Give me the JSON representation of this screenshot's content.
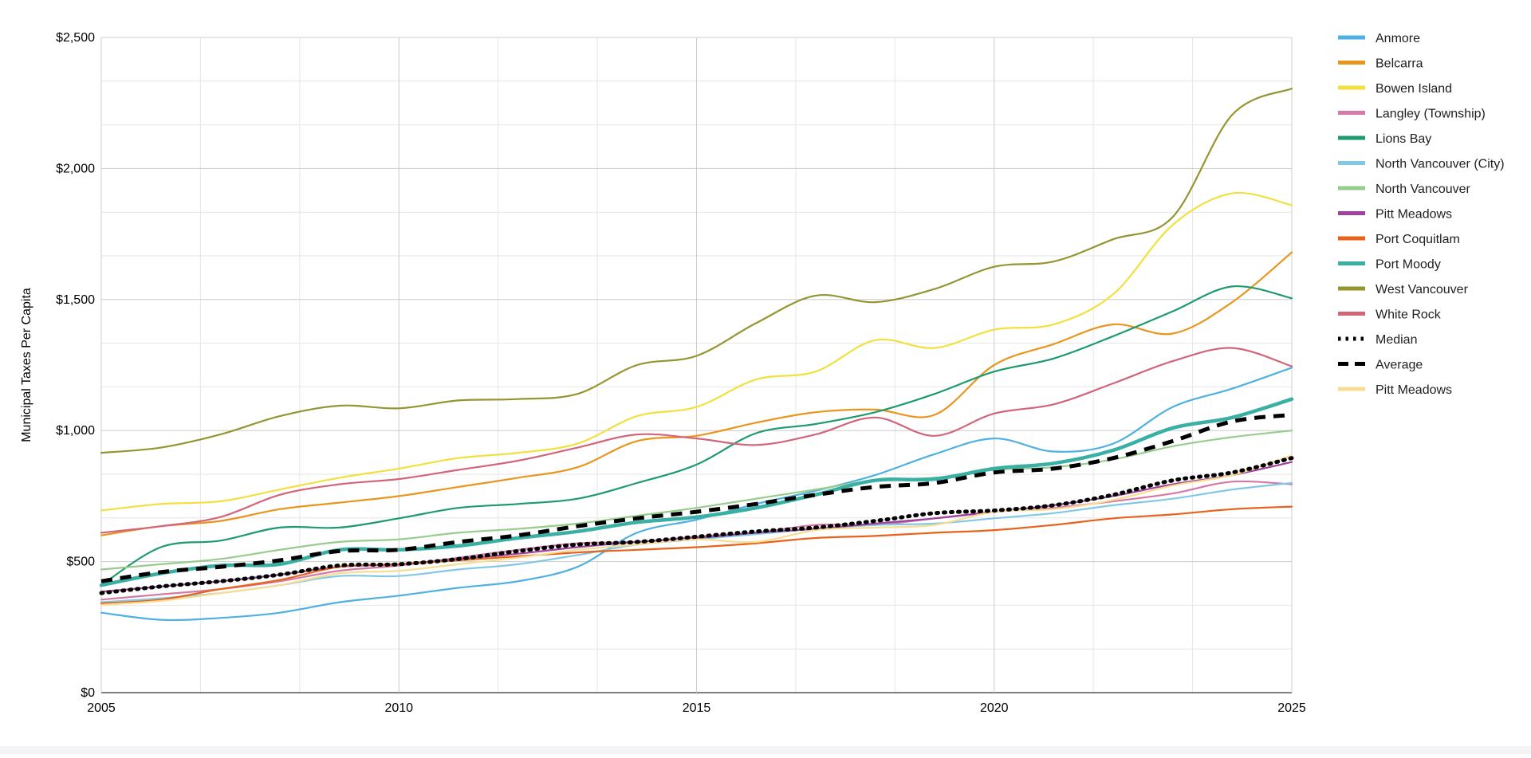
{
  "chart_data": {
    "type": "line",
    "title": "",
    "xlabel": "",
    "ylabel": "Municipal Taxes Per Capita",
    "xlim": [
      2005,
      2025
    ],
    "ylim": [
      0,
      2500
    ],
    "x_ticks": [
      {
        "value": 2005,
        "label": "2005"
      },
      {
        "value": 2010,
        "label": "2010"
      },
      {
        "value": 2015,
        "label": "2015"
      },
      {
        "value": 2020,
        "label": "2020"
      },
      {
        "value": 2025,
        "label": "2025"
      }
    ],
    "y_ticks": [
      {
        "value": 0,
        "label": "$0"
      },
      {
        "value": 500,
        "label": "$500"
      },
      {
        "value": 1000,
        "label": "$1,000"
      },
      {
        "value": 1500,
        "label": "$1,500"
      },
      {
        "value": 2000,
        "label": "$2,000"
      },
      {
        "value": 2500,
        "label": "$2,500"
      }
    ],
    "grid": true,
    "legend_position": "right",
    "x": [
      2005,
      2006,
      2007,
      2008,
      2009,
      2010,
      2011,
      2012,
      2013,
      2014,
      2015,
      2016,
      2017,
      2018,
      2019,
      2020,
      2021,
      2022,
      2023,
      2024,
      2025
    ],
    "series": [
      {
        "name": "Anmore",
        "color": "#4fb0e2",
        "style": "solid",
        "weight": "normal",
        "values": [
          305,
          278,
          285,
          305,
          345,
          370,
          400,
          425,
          480,
          610,
          660,
          720,
          770,
          830,
          910,
          970,
          920,
          950,
          1090,
          1160,
          1240
        ]
      },
      {
        "name": "Belcarra",
        "color": "#e8961e",
        "style": "solid",
        "weight": "normal",
        "values": [
          600,
          635,
          655,
          700,
          725,
          750,
          785,
          820,
          860,
          960,
          980,
          1030,
          1070,
          1080,
          1060,
          1250,
          1330,
          1405,
          1370,
          1490,
          1680
        ]
      },
      {
        "name": "Bowen Island",
        "color": "#f2e03f",
        "style": "solid",
        "weight": "normal",
        "values": [
          695,
          720,
          730,
          775,
          820,
          855,
          895,
          915,
          950,
          1055,
          1090,
          1195,
          1225,
          1345,
          1315,
          1385,
          1405,
          1520,
          1785,
          1905,
          1860
        ]
      },
      {
        "name": "Langley (Township)",
        "color": "#d47aa5",
        "style": "solid",
        "weight": "normal",
        "values": [
          355,
          375,
          395,
          425,
          465,
          485,
          515,
          545,
          570,
          575,
          595,
          610,
          640,
          640,
          665,
          690,
          705,
          730,
          760,
          805,
          795
        ]
      },
      {
        "name": "Lions Bay",
        "color": "#1d9b6e",
        "style": "solid",
        "weight": "normal",
        "values": [
          410,
          555,
          580,
          630,
          630,
          665,
          705,
          720,
          740,
          800,
          870,
          990,
          1025,
          1070,
          1140,
          1225,
          1275,
          1360,
          1455,
          1550,
          1505
        ]
      },
      {
        "name": "North Vancouver (City)",
        "color": "#82c8e6",
        "style": "solid",
        "weight": "normal",
        "values": [
          345,
          360,
          380,
          410,
          445,
          445,
          470,
          490,
          525,
          565,
          585,
          605,
          625,
          640,
          645,
          665,
          685,
          715,
          740,
          775,
          800
        ]
      },
      {
        "name": "North Vancouver",
        "color": "#96cc8c",
        "style": "solid",
        "weight": "normal",
        "values": [
          470,
          490,
          510,
          545,
          575,
          585,
          610,
          625,
          645,
          675,
          705,
          740,
          775,
          810,
          820,
          850,
          860,
          890,
          940,
          975,
          1000
        ]
      },
      {
        "name": "Pitt Meadows",
        "color": "#a0429c",
        "style": "solid",
        "weight": "normal",
        "values": [
          385,
          405,
          425,
          450,
          480,
          490,
          510,
          530,
          555,
          575,
          590,
          610,
          625,
          645,
          665,
          690,
          715,
          750,
          795,
          830,
          880
        ]
      },
      {
        "name": "Port Coquitlam",
        "color": "#e8621a",
        "style": "solid",
        "weight": "normal",
        "values": [
          340,
          355,
          395,
          430,
          480,
          490,
          505,
          520,
          535,
          545,
          555,
          570,
          590,
          598,
          610,
          620,
          640,
          665,
          680,
          700,
          710
        ]
      },
      {
        "name": "Port Moody",
        "color": "#3ab0a4",
        "style": "solid",
        "weight": "thick",
        "values": [
          410,
          455,
          485,
          490,
          545,
          545,
          560,
          590,
          615,
          650,
          670,
          705,
          755,
          810,
          815,
          855,
          875,
          925,
          1010,
          1050,
          1120
        ]
      },
      {
        "name": "West Vancouver",
        "color": "#959532",
        "style": "solid",
        "weight": "normal",
        "values": [
          915,
          935,
          985,
          1055,
          1095,
          1085,
          1115,
          1120,
          1140,
          1250,
          1285,
          1410,
          1515,
          1490,
          1540,
          1625,
          1645,
          1730,
          1815,
          2205,
          2305
        ]
      },
      {
        "name": "White Rock",
        "color": "#d1657a",
        "style": "solid",
        "weight": "normal",
        "values": [
          610,
          635,
          670,
          755,
          795,
          815,
          850,
          885,
          935,
          985,
          970,
          945,
          985,
          1050,
          980,
          1065,
          1100,
          1180,
          1265,
          1315,
          1245
        ]
      },
      {
        "name": "Median",
        "color": "#000000",
        "style": "dotted",
        "weight": "thick",
        "values": [
          380,
          405,
          425,
          450,
          485,
          490,
          510,
          540,
          565,
          575,
          595,
          615,
          630,
          655,
          685,
          695,
          715,
          755,
          810,
          840,
          895
        ]
      },
      {
        "name": "Average",
        "color": "#000000",
        "style": "dashed",
        "weight": "thick",
        "values": [
          425,
          460,
          480,
          505,
          540,
          545,
          575,
          600,
          635,
          665,
          690,
          720,
          755,
          785,
          800,
          840,
          855,
          895,
          960,
          1035,
          1060
        ]
      },
      {
        "name": "Pitt Meadows",
        "color": "#f7dd92",
        "style": "solid",
        "weight": "normal",
        "values": [
          335,
          350,
          380,
          410,
          455,
          465,
          490,
          515,
          545,
          565,
          585,
          575,
          620,
          630,
          640,
          690,
          700,
          735,
          790,
          830,
          905
        ]
      }
    ]
  }
}
